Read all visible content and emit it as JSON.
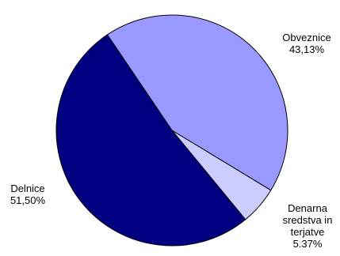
{
  "chart_data": {
    "type": "pie",
    "title": "",
    "start_angle_deg": -34,
    "direction": "clockwise",
    "slices": [
      {
        "name": "Obveznice",
        "value": 43.13,
        "value_label": "43,13%",
        "name_lines": [
          "Obveznice"
        ],
        "color": "#9999FF"
      },
      {
        "name": "Denarna sredstva in terjatve",
        "value": 5.37,
        "value_label": "5.37%",
        "name_lines": [
          "Denarna",
          "sredstva in",
          "terjatve"
        ],
        "color": "#CCCCFF"
      },
      {
        "name": "Delnice",
        "value": 51.5,
        "value_label": "51,50%",
        "name_lines": [
          "Delnice"
        ],
        "color": "#000080"
      }
    ],
    "stroke_color": "#000000"
  }
}
